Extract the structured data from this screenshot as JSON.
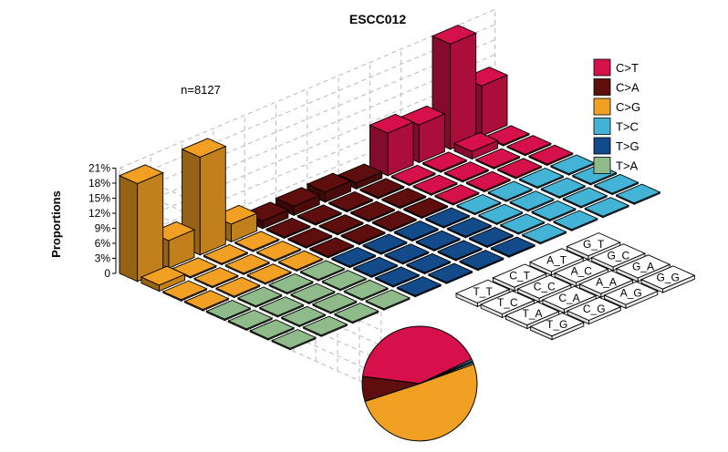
{
  "chart_data": {
    "type": "bar",
    "subtype": "3d-lego-kmer-barplot-with-pie",
    "title": "ESCC012",
    "ylabel": "Proportions",
    "y_ticks": [
      "21%",
      "18%",
      "15%",
      "12%",
      "9%",
      "6%",
      "3%",
      "0"
    ],
    "ylim": [
      0,
      21
    ],
    "annotation": "n=8127",
    "grid": true,
    "legend_position": "top-right",
    "mutation_types": [
      {
        "label": "C>T",
        "color": "#D6114A"
      },
      {
        "label": "C>A",
        "color": "#5E0E0C"
      },
      {
        "label": "C>G",
        "color": "#F2A024"
      },
      {
        "label": "T>C",
        "color": "#43B3D6"
      },
      {
        "label": "T>G",
        "color": "#124A8A"
      },
      {
        "label": "T>A",
        "color": "#8FBA8A"
      }
    ],
    "context_labels": [
      "T_G",
      "T_A",
      "C_G",
      "T_C",
      "C_A",
      "A_G",
      "T_T",
      "C_C",
      "A_A",
      "G_G",
      "C_T",
      "A_C",
      "G_A",
      "A_T",
      "G_C",
      "G_T"
    ],
    "bars": [
      {
        "type": "C>G",
        "values": [
          [
            19.5,
            1.2,
            0.4,
            0.3
          ],
          [
            5.5,
            0.6,
            0.3,
            0.2
          ],
          [
            19.5,
            1.0,
            0.3,
            0.2
          ],
          [
            3.5,
            0.5,
            0.2,
            0.2
          ]
        ]
      },
      {
        "type": "C>A",
        "values": [
          [
            1.5,
            0.4,
            0.3,
            0.2
          ],
          [
            1.8,
            0.5,
            0.3,
            0.2
          ],
          [
            2.0,
            0.5,
            0.3,
            0.2
          ],
          [
            1.2,
            0.3,
            0.2,
            0.2
          ]
        ]
      },
      {
        "type": "C>T",
        "values": [
          [
            8.5,
            0.6,
            0.3,
            0.3
          ],
          [
            7.5,
            0.6,
            0.4,
            0.3
          ],
          [
            21.0,
            1.5,
            0.6,
            0.3
          ],
          [
            10.0,
            1.0,
            0.5,
            0.3
          ]
        ]
      },
      {
        "type": "T>A",
        "values": [
          [
            0.3,
            0.2,
            0.2,
            0.2
          ],
          [
            0.2,
            0.2,
            0.2,
            0.2
          ],
          [
            0.3,
            0.2,
            0.2,
            0.2
          ],
          [
            0.2,
            0.2,
            0.2,
            0.2
          ]
        ]
      },
      {
        "type": "T>G",
        "values": [
          [
            0.2,
            0.2,
            0.2,
            0.2
          ],
          [
            0.3,
            0.2,
            0.2,
            0.2
          ],
          [
            0.2,
            0.2,
            0.2,
            0.2
          ],
          [
            0.2,
            0.2,
            0.2,
            0.2
          ]
        ]
      },
      {
        "type": "T>C",
        "values": [
          [
            0.2,
            0.2,
            0.2,
            0.2
          ],
          [
            0.2,
            0.2,
            0.2,
            0.2
          ],
          [
            0.2,
            0.2,
            0.2,
            0.2
          ],
          [
            0.2,
            0.2,
            0.2,
            0.2
          ]
        ]
      }
    ],
    "pie": [
      {
        "label": "C>T",
        "value": 41.0
      },
      {
        "label": "T>C",
        "value": 0.5
      },
      {
        "label": "T>G",
        "value": 0.5
      },
      {
        "label": "T>A",
        "value": 0.5
      },
      {
        "label": "C>G",
        "value": 50.5
      },
      {
        "label": "C>A",
        "value": 7.0
      }
    ]
  }
}
